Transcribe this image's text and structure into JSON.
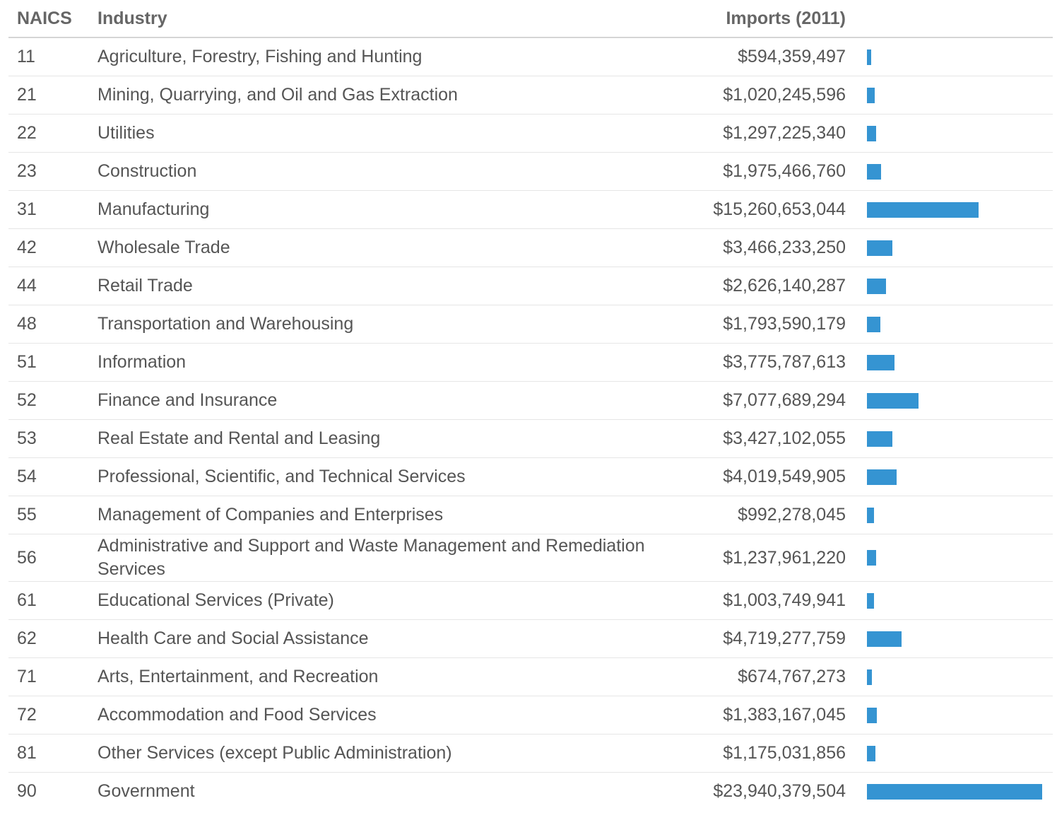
{
  "header": [
    "NAICS",
    "Industry",
    "Imports (2011)"
  ],
  "rows": [
    {
      "naics": "11",
      "industry": "Agriculture, Forestry, Fishing and Hunting",
      "imports": {
        "value": 594359497,
        "label": "$594,359,497"
      }
    },
    {
      "naics": "21",
      "industry": "Mining, Quarrying, and Oil and Gas Extraction",
      "imports": {
        "value": 1020245596,
        "label": "$1,020,245,596"
      }
    },
    {
      "naics": "22",
      "industry": "Utilities",
      "imports": {
        "value": 1297225340,
        "label": "$1,297,225,340"
      }
    },
    {
      "naics": "23",
      "industry": "Construction",
      "imports": {
        "value": 1975466760,
        "label": "$1,975,466,760"
      }
    },
    {
      "naics": "31",
      "industry": "Manufacturing",
      "imports": {
        "value": 15260653044,
        "label": "$15,260,653,044"
      }
    },
    {
      "naics": "42",
      "industry": "Wholesale Trade",
      "imports": {
        "value": 3466233250,
        "label": "$3,466,233,250"
      }
    },
    {
      "naics": "44",
      "industry": "Retail Trade",
      "imports": {
        "value": 2626140287,
        "label": "$2,626,140,287"
      }
    },
    {
      "naics": "48",
      "industry": "Transportation and Warehousing",
      "imports": {
        "value": 1793590179,
        "label": "$1,793,590,179"
      }
    },
    {
      "naics": "51",
      "industry": "Information",
      "imports": {
        "value": 3775787613,
        "label": "$3,775,787,613"
      }
    },
    {
      "naics": "52",
      "industry": "Finance and Insurance",
      "imports": {
        "value": 7077689294,
        "label": "$7,077,689,294"
      }
    },
    {
      "naics": "53",
      "industry": "Real Estate and Rental and Leasing",
      "imports": {
        "value": 3427102055,
        "label": "$3,427,102,055"
      }
    },
    {
      "naics": "54",
      "industry": "Professional, Scientific, and Technical Services",
      "imports": {
        "value": 4019549905,
        "label": "$4,019,549,905"
      }
    },
    {
      "naics": "55",
      "industry": "Management of Companies and Enterprises",
      "imports": {
        "value": 992278045,
        "label": "$992,278,045"
      }
    },
    {
      "naics": "56",
      "industry": "Administrative and Support and Waste Management and Remediation Services",
      "imports": {
        "value": 1237961220,
        "label": "$1,237,961,220"
      }
    },
    {
      "naics": "61",
      "industry": "Educational Services (Private)",
      "imports": {
        "value": 1003749941,
        "label": "$1,003,749,941"
      }
    },
    {
      "naics": "62",
      "industry": "Health Care and Social Assistance",
      "imports": {
        "value": 4719277759,
        "label": "$4,719,277,759"
      }
    },
    {
      "naics": "71",
      "industry": "Arts, Entertainment, and Recreation",
      "imports": {
        "value": 674767273,
        "label": "$674,767,273"
      }
    },
    {
      "naics": "72",
      "industry": "Accommodation and Food Services",
      "imports": {
        "value": 1383167045,
        "label": "$1,383,167,045"
      }
    },
    {
      "naics": "81",
      "industry": "Other Services (except Public Administration)",
      "imports": {
        "value": 1175031856,
        "label": "$1,175,031,856"
      }
    },
    {
      "naics": "90",
      "industry": "Government",
      "imports": {
        "value": 23940379504,
        "label": "$23,940,379,504"
      }
    }
  ]
}
